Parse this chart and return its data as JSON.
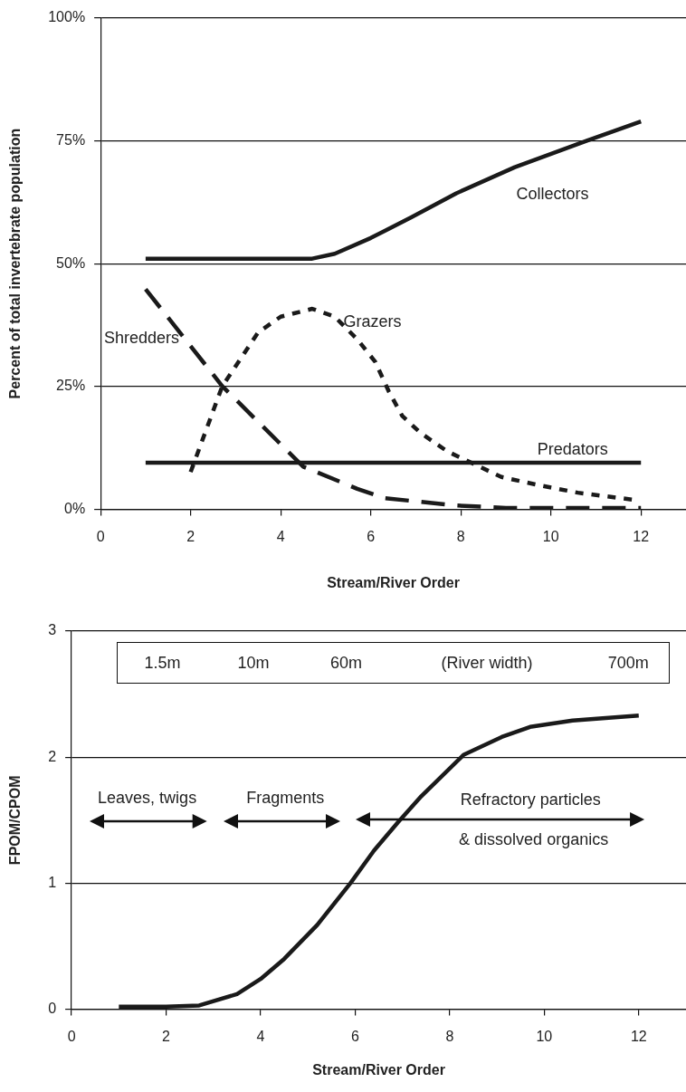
{
  "chart_data": [
    {
      "type": "line",
      "xlabel": "Stream/River Order",
      "ylabel": "Percent of total invertebrate population",
      "xlim": [
        0,
        13
      ],
      "xticks": [
        0,
        2,
        4,
        6,
        8,
        10,
        12
      ],
      "ylim": [
        0,
        100
      ],
      "yticks": [
        {
          "value": 0,
          "label": "0%"
        },
        {
          "value": 25,
          "label": "25%"
        },
        {
          "value": 50,
          "label": "50%"
        },
        {
          "value": 75,
          "label": "75%"
        },
        {
          "value": 100,
          "label": "100%"
        }
      ],
      "grid": "y",
      "legend": false,
      "marker": "none",
      "series": [
        {
          "name": "Collectors",
          "color": "#1a1a1a",
          "line_style": "solid",
          "x": [
            1,
            4.7,
            5.2,
            6,
            6.9,
            7.9,
            9.2,
            10.8,
            12
          ],
          "values": [
            51,
            51,
            52,
            55.2,
            59.4,
            64.3,
            69.6,
            75,
            78.9
          ]
        },
        {
          "name": "Grazers",
          "color": "#1a1a1a",
          "line_style": "dotted",
          "x": [
            2,
            2.7,
            3.5,
            4,
            4.7,
            5.2,
            5.7,
            6.1,
            6.4,
            6.7,
            7.1,
            7.7,
            8.3,
            8.9,
            9.8,
            10.6,
            11.8
          ],
          "values": [
            7.6,
            25,
            36,
            39.2,
            40.8,
            39.2,
            34.6,
            30,
            24,
            19,
            15.6,
            11.8,
            9.2,
            6.6,
            4.8,
            3.4,
            2
          ]
        },
        {
          "name": "Shredders",
          "color": "#1a1a1a",
          "line_style": "dashed",
          "x": [
            1,
            2.7,
            4.5,
            5.7,
            6.3,
            7.9,
            9,
            12
          ],
          "values": [
            44.8,
            25.1,
            8.7,
            4.2,
            2.3,
            0.8,
            0.3,
            0.3
          ]
        },
        {
          "name": "Predators",
          "color": "#1a1a1a",
          "line_style": "solid",
          "x": [
            1,
            12
          ],
          "values": [
            9.5,
            9.5
          ]
        }
      ]
    },
    {
      "type": "line",
      "xlabel": "Stream/River Order",
      "ylabel": "FPOM/CPOM",
      "xlim": [
        0,
        13
      ],
      "xticks": [
        0,
        2,
        4,
        6,
        8,
        10,
        12
      ],
      "ylim": [
        0,
        3
      ],
      "yticks": [
        0,
        1,
        2,
        3
      ],
      "grid": "y",
      "legend": false,
      "marker": "none",
      "series": [
        {
          "color": "#1a1a1a",
          "line_style": "solid",
          "x": [
            1,
            2,
            2.7,
            3.5,
            4,
            4.5,
            5.2,
            5.9,
            6.4,
            6.9,
            7.4,
            8.3,
            8.7,
            9.1,
            9.7,
            10.6,
            12
          ],
          "values": [
            0.02,
            0.02,
            0.03,
            0.12,
            0.24,
            0.4,
            0.67,
            1,
            1.26,
            1.48,
            1.69,
            2.02,
            2.09,
            2.16,
            2.24,
            2.29,
            2.33
          ]
        }
      ],
      "annotations": [
        "1.5m",
        "10m",
        "60m",
        "(River width)",
        "700m",
        "Leaves, twigs",
        "Fragments",
        "Refractory particles",
        "& dissolved organics"
      ]
    }
  ]
}
